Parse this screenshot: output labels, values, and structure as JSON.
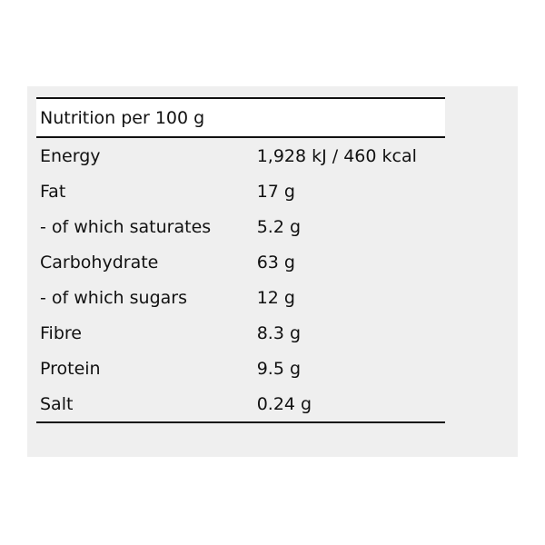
{
  "header": {
    "title": "Nutrition per 100 g"
  },
  "table": {
    "rows": [
      [
        "Energy",
        "1,928 kJ / 460 kcal"
      ],
      [
        "Fat",
        "17 g"
      ],
      [
        "- of which saturates",
        "5.2 g"
      ],
      [
        "Carbohydrate",
        "63 g"
      ],
      [
        "- of which sugars",
        "12 g"
      ],
      [
        "Fibre",
        "8.3 g"
      ],
      [
        "Protein",
        "9.5 g"
      ],
      [
        "Salt",
        "0.24 g"
      ]
    ]
  }
}
